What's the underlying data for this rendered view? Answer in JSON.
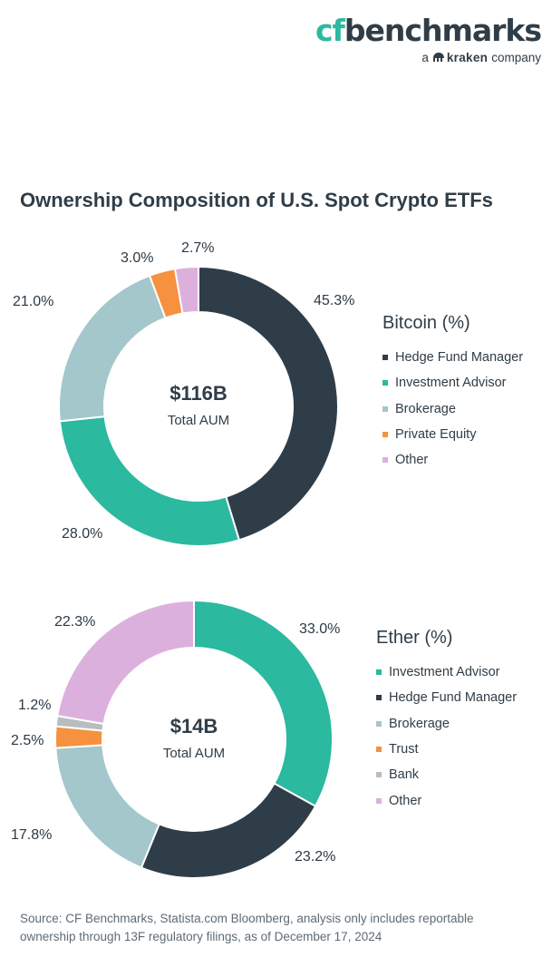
{
  "logo": {
    "cf": "cf",
    "benchmarks": "benchmarks",
    "prefix": "a",
    "kraken": "kraken",
    "suffix": "company"
  },
  "title": "Ownership Composition of U.S. Spot Crypto ETFs",
  "chart_data": [
    {
      "type": "pie",
      "title": "Bitcoin (%)",
      "center_value": "$116B",
      "center_label": "Total AUM",
      "labels": [
        "45.3%",
        "28.0%",
        "21.0%",
        "3.0%",
        "2.7%"
      ],
      "series": [
        {
          "name": "Hedge Fund Manager",
          "value": 45.3,
          "color": "#2f3d48"
        },
        {
          "name": "Investment Advisor",
          "value": 28.0,
          "color": "#2bb9a0"
        },
        {
          "name": "Brokerage",
          "value": 21.0,
          "color": "#a3c7cb"
        },
        {
          "name": "Private Equity",
          "value": 3.0,
          "color": "#f5913f"
        },
        {
          "name": "Other",
          "value": 2.7,
          "color": "#dcb0dd"
        }
      ]
    },
    {
      "type": "pie",
      "title": "Ether (%)",
      "center_value": "$14B",
      "center_label": "Total AUM",
      "labels": [
        "33.0%",
        "23.2%",
        "17.8%",
        "2.5%",
        "1.2%",
        "22.3%"
      ],
      "series": [
        {
          "name": "Investment Advisor",
          "value": 33.0,
          "color": "#2bb9a0"
        },
        {
          "name": "Hedge Fund Manager",
          "value": 23.2,
          "color": "#2f3d48"
        },
        {
          "name": "Brokerage",
          "value": 17.8,
          "color": "#a3c7cb"
        },
        {
          "name": "Trust",
          "value": 2.5,
          "color": "#f5913f"
        },
        {
          "name": "Bank",
          "value": 1.2,
          "color": "#b8bdc0"
        },
        {
          "name": "Other",
          "value": 22.3,
          "color": "#dcb0dd"
        }
      ]
    }
  ],
  "source": "Source: CF Benchmarks, Statista.com Bloomberg, analysis only includes reportable ownership through 13F regulatory filings, as of December 17, 2024"
}
